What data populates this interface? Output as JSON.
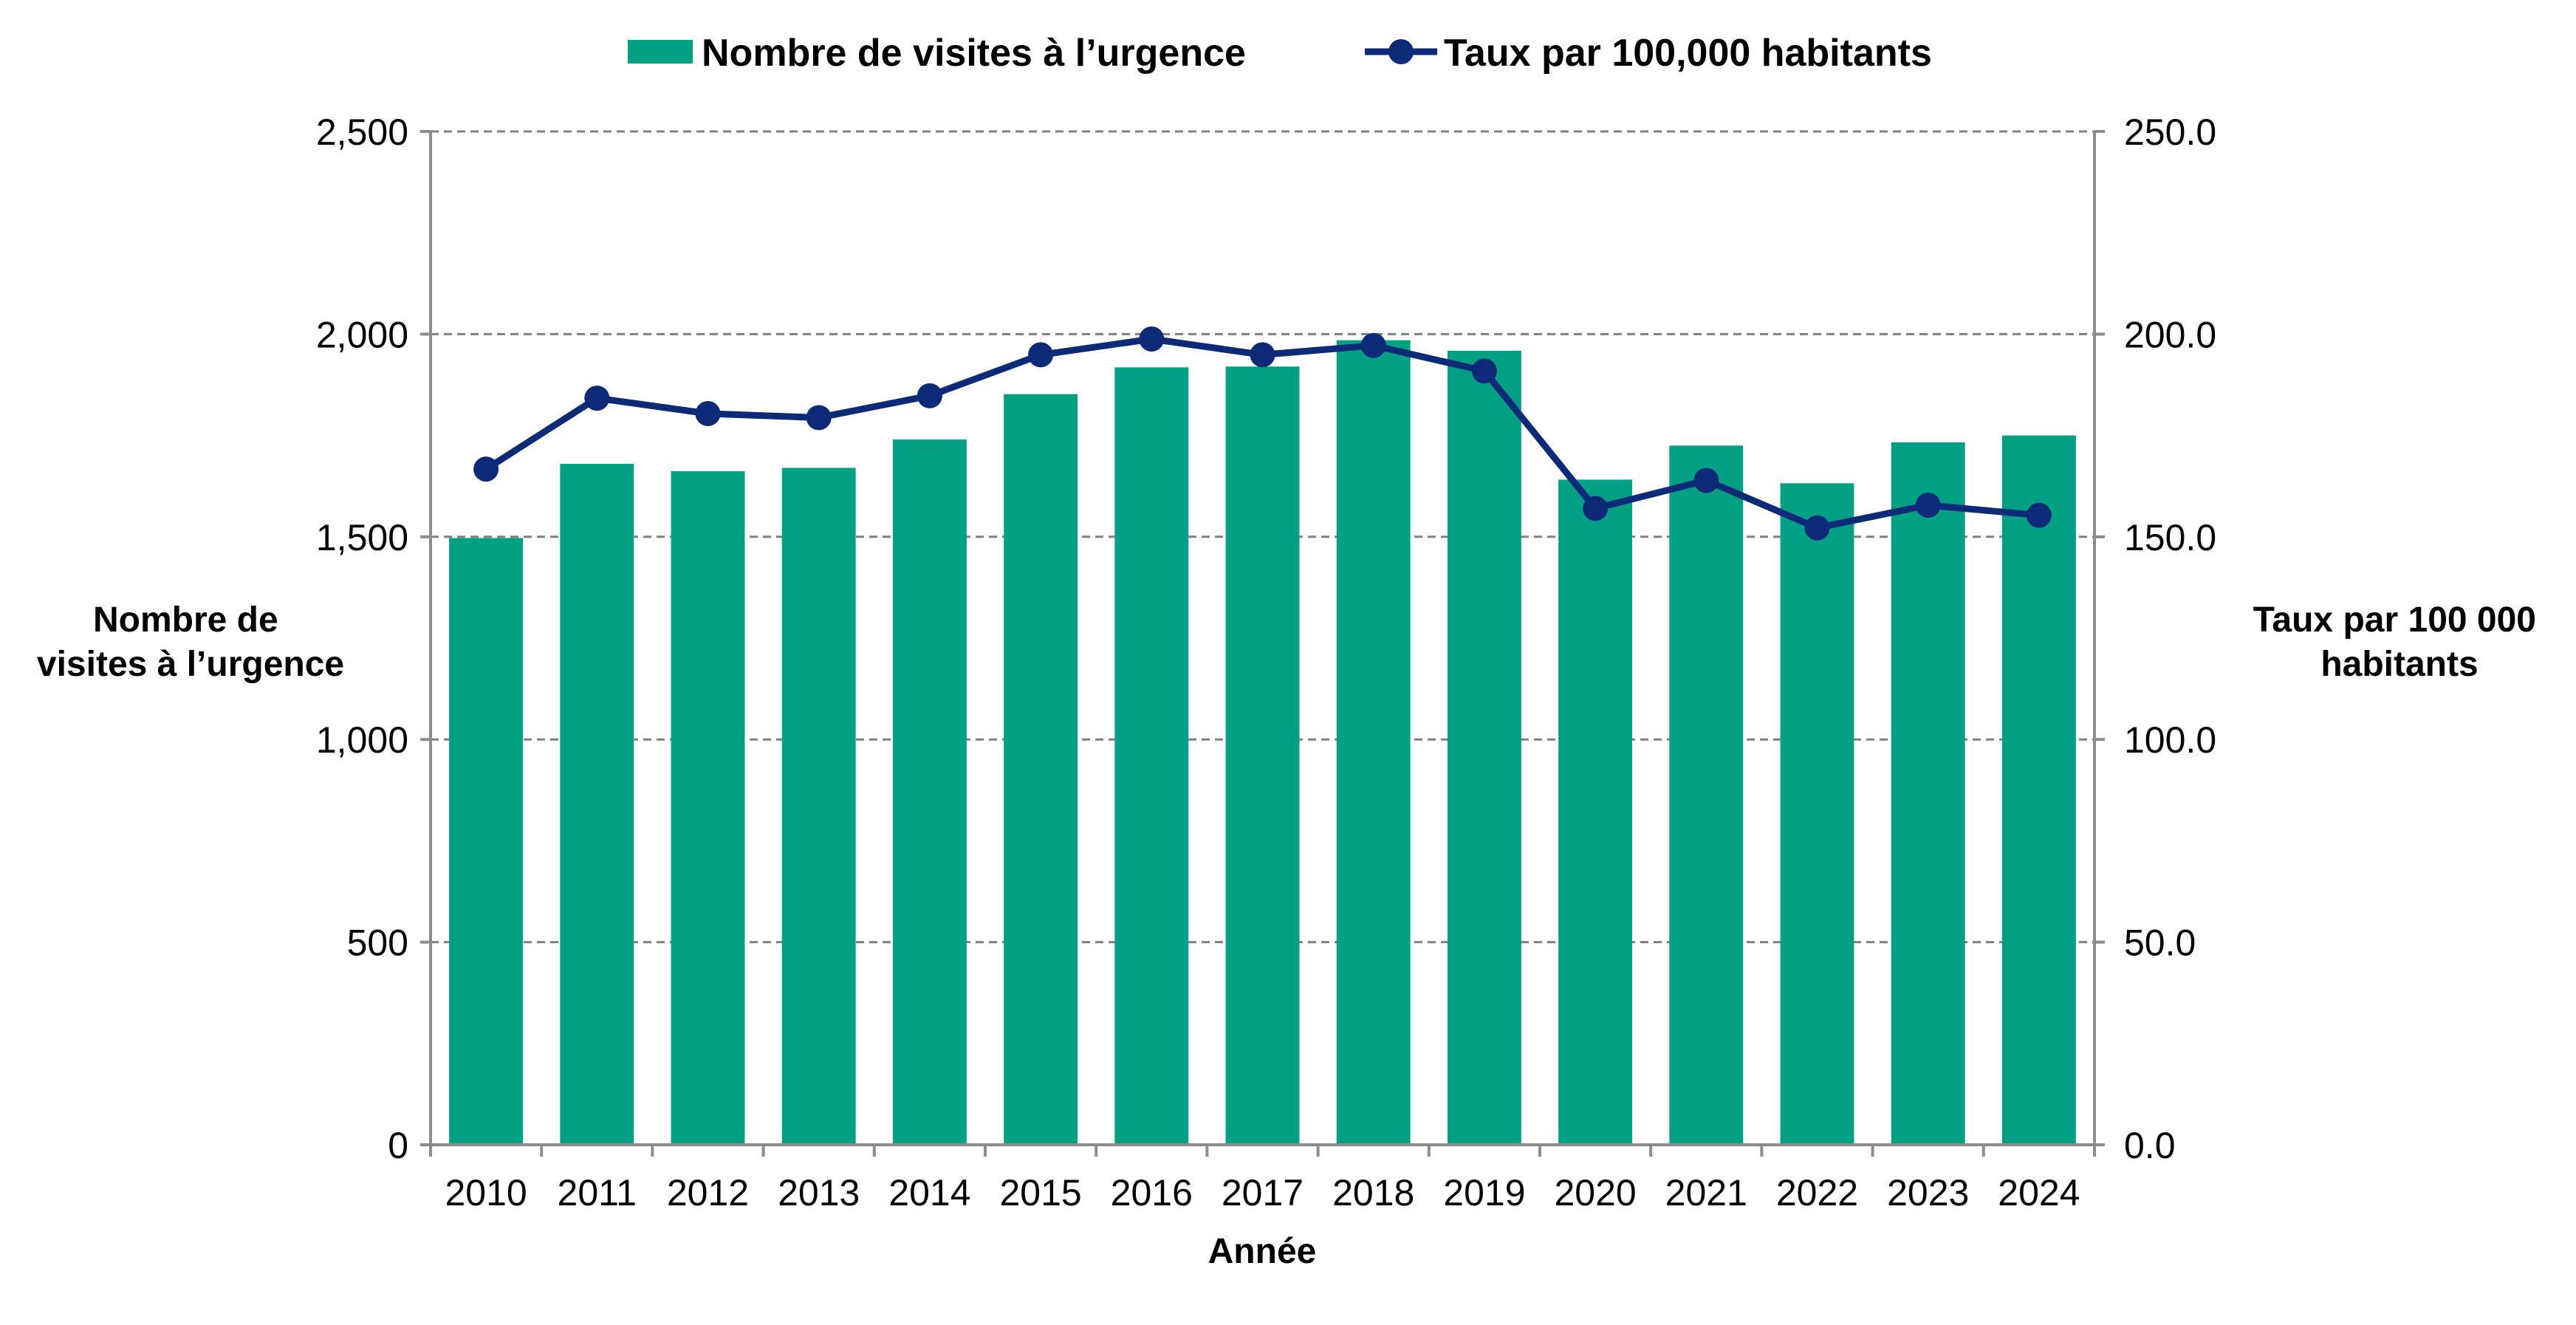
{
  "chart_data": {
    "type": "bar",
    "categories": [
      "2010",
      "2011",
      "2012",
      "2013",
      "2014",
      "2015",
      "2016",
      "2017",
      "2018",
      "2019",
      "2020",
      "2021",
      "2022",
      "2023",
      "2024"
    ],
    "series": [
      {
        "name": "Nombre de visites à l’urgence",
        "type": "bar",
        "axis": "left",
        "color": "#00a084",
        "values": [
          1497,
          1680,
          1662,
          1670,
          1740,
          1852,
          1918,
          1920,
          1985,
          1959,
          1641,
          1725,
          1632,
          1733,
          1750
        ]
      },
      {
        "name": "Taux par 100,000 habitants",
        "type": "line",
        "axis": "right",
        "color": "#0d2a78",
        "values": [
          166.7,
          184.2,
          180.4,
          179.4,
          184.8,
          194.9,
          198.8,
          194.9,
          197.2,
          190.9,
          157.0,
          163.9,
          152.2,
          157.8,
          155.3
        ]
      }
    ],
    "xlabel": "Année",
    "ylabel_left": [
      "Nombre de",
      "visites à l’urgence"
    ],
    "ylabel_right": [
      "Taux par 100 000",
      "habitants"
    ],
    "ylim_left": [
      0,
      2500
    ],
    "ylim_right": [
      0,
      250
    ],
    "yticks_left": [
      "0",
      "500",
      "1,000",
      "1,500",
      "2,000",
      "2,500"
    ],
    "yticks_right": [
      "0.0",
      "50.0",
      "100.0",
      "150.0",
      "200.0",
      "250.0"
    ],
    "grid": true,
    "legend_position": "top-center"
  }
}
